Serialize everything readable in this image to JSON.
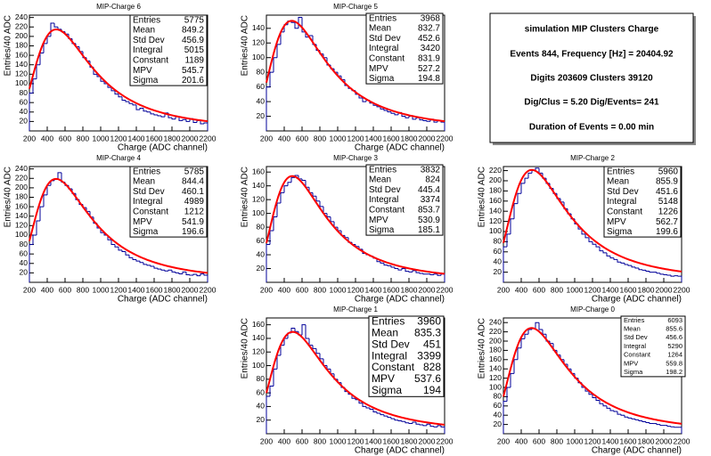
{
  "chart_data": [
    {
      "type": "histogram",
      "title": "MIP-Charge 6",
      "x_label": "Charge (ADC channel)",
      "y_label": "Entries/40 ADC",
      "bins": [
        200,
        240,
        280,
        320,
        360,
        400,
        440,
        480,
        520,
        560,
        600,
        640,
        680,
        720,
        760,
        800,
        840,
        880,
        920,
        960,
        1000,
        1040,
        1080,
        1120,
        1160,
        1200,
        1240,
        1280,
        1320,
        1360,
        1400,
        1440,
        1480,
        1520,
        1560,
        1600,
        1640,
        1680,
        1720,
        1760,
        1800,
        1840,
        1880,
        1920,
        1960,
        2000,
        2040,
        2080,
        2120,
        2160,
        2200
      ],
      "counts": [
        80,
        110,
        140,
        165,
        185,
        200,
        228,
        220,
        215,
        210,
        205,
        195,
        185,
        178,
        168,
        155,
        148,
        135,
        120,
        115,
        105,
        100,
        92,
        85,
        78,
        72,
        65,
        62,
        58,
        55,
        45,
        48,
        42,
        40,
        36,
        34,
        32,
        30,
        38,
        28,
        25,
        30,
        22,
        24,
        20,
        26,
        18,
        22,
        15,
        17
      ],
      "color": "#000099",
      "fit_color": "#ff0000",
      "xlim": [
        200,
        2200
      ],
      "xticks": [
        200,
        400,
        600,
        800,
        1000,
        1200,
        1400,
        1600,
        1800,
        2000,
        2200
      ],
      "ylim": [
        0,
        245
      ],
      "yticks": [
        20,
        40,
        60,
        80,
        100,
        120,
        140,
        160,
        180,
        200,
        220,
        240
      ],
      "stats": [
        {
          "label": "Entries",
          "value": 5775
        },
        {
          "label": "Mean",
          "value": 849.2
        },
        {
          "label": "Std Dev",
          "value": 456.9
        },
        {
          "label": "Integral",
          "value": 5015
        },
        {
          "label": "Constant",
          "value": 1189
        },
        {
          "label": "MPV",
          "value": 545.7
        },
        {
          "label": "Sigma",
          "value": 201.6
        }
      ]
    },
    {
      "type": "histogram",
      "title": "MIP-Charge 5",
      "x_label": "Charge (ADC channel)",
      "y_label": "Entries/40 ADC",
      "bins": [
        200,
        240,
        280,
        320,
        360,
        400,
        440,
        480,
        520,
        560,
        600,
        640,
        680,
        720,
        760,
        800,
        840,
        880,
        920,
        960,
        1000,
        1040,
        1080,
        1120,
        1160,
        1200,
        1240,
        1280,
        1320,
        1360,
        1400,
        1440,
        1480,
        1520,
        1560,
        1600,
        1640,
        1680,
        1720,
        1760,
        1800,
        1840,
        1880,
        1920,
        1960,
        2000,
        2040,
        2080,
        2120,
        2160,
        2200
      ],
      "counts": [
        60,
        80,
        100,
        118,
        135,
        145,
        150,
        148,
        140,
        155,
        135,
        128,
        130,
        118,
        110,
        105,
        100,
        90,
        85,
        80,
        75,
        70,
        62,
        58,
        55,
        50,
        45,
        40,
        42,
        38,
        35,
        33,
        30,
        28,
        26,
        24,
        22,
        25,
        20,
        18,
        20,
        16,
        18,
        15,
        14,
        13,
        16,
        12,
        14,
        12
      ],
      "color": "#000099",
      "fit_color": "#ff0000",
      "xlim": [
        200,
        2200
      ],
      "xticks": [
        200,
        400,
        600,
        800,
        1000,
        1200,
        1400,
        1600,
        1800,
        2000,
        2200
      ],
      "ylim": [
        0,
        158
      ],
      "yticks": [
        20,
        40,
        60,
        80,
        100,
        120,
        140
      ],
      "stats": [
        {
          "label": "Entries",
          "value": 3968
        },
        {
          "label": "Mean",
          "value": 832.7
        },
        {
          "label": "Std Dev",
          "value": 452.6
        },
        {
          "label": "Integral",
          "value": 3420
        },
        {
          "label": "Constant",
          "value": 831.9
        },
        {
          "label": "MPV",
          "value": 527.2
        },
        {
          "label": "Sigma",
          "value": 194.8
        }
      ]
    },
    {
      "type": "histogram",
      "title": "MIP-Charge 4",
      "x_label": "Charge (ADC channel)",
      "y_label": "Entries/40 ADC",
      "bins": [
        200,
        240,
        280,
        320,
        360,
        400,
        440,
        480,
        520,
        560,
        600,
        640,
        680,
        720,
        760,
        800,
        840,
        880,
        920,
        960,
        1000,
        1040,
        1080,
        1120,
        1160,
        1200,
        1240,
        1280,
        1320,
        1360,
        1400,
        1440,
        1480,
        1520,
        1560,
        1600,
        1640,
        1680,
        1720,
        1760,
        1800,
        1840,
        1880,
        1920,
        1960,
        2000,
        2040,
        2080,
        2120,
        2160,
        2200
      ],
      "counts": [
        80,
        100,
        130,
        160,
        185,
        205,
        215,
        218,
        232,
        212,
        205,
        198,
        188,
        175,
        165,
        158,
        150,
        138,
        125,
        115,
        105,
        100,
        90,
        80,
        75,
        68,
        65,
        58,
        52,
        48,
        45,
        42,
        38,
        36,
        34,
        30,
        28,
        26,
        24,
        26,
        22,
        20,
        18,
        22,
        16,
        15,
        17,
        14,
        18,
        15
      ],
      "color": "#000099",
      "fit_color": "#ff0000",
      "xlim": [
        200,
        2200
      ],
      "xticks": [
        200,
        400,
        600,
        800,
        1000,
        1200,
        1400,
        1600,
        1800,
        2000,
        2200
      ],
      "ylim": [
        0,
        245
      ],
      "yticks": [
        20,
        40,
        60,
        80,
        100,
        120,
        140,
        160,
        180,
        200,
        220,
        240
      ],
      "stats": [
        {
          "label": "Entries",
          "value": 5785
        },
        {
          "label": "Mean",
          "value": 844.4
        },
        {
          "label": "Std Dev",
          "value": 460.1
        },
        {
          "label": "Integral",
          "value": 4989
        },
        {
          "label": "Constant",
          "value": 1212
        },
        {
          "label": "MPV",
          "value": 541.9
        },
        {
          "label": "Sigma",
          "value": 196.6
        }
      ]
    },
    {
      "type": "histogram",
      "title": "MIP-Charge 3",
      "x_label": "Charge (ADC channel)",
      "y_label": "Entries/40 ADC",
      "bins": [
        200,
        240,
        280,
        320,
        360,
        400,
        440,
        480,
        520,
        560,
        600,
        640,
        680,
        720,
        760,
        800,
        840,
        880,
        920,
        960,
        1000,
        1040,
        1080,
        1120,
        1160,
        1200,
        1240,
        1280,
        1320,
        1360,
        1400,
        1440,
        1480,
        1520,
        1560,
        1600,
        1640,
        1680,
        1720,
        1760,
        1800,
        1840,
        1880,
        1920,
        1960,
        2000,
        2040,
        2080,
        2120,
        2160,
        2200
      ],
      "counts": [
        55,
        75,
        95,
        115,
        130,
        140,
        145,
        152,
        155,
        150,
        148,
        138,
        130,
        125,
        118,
        110,
        100,
        95,
        88,
        80,
        75,
        68,
        65,
        58,
        55,
        52,
        48,
        42,
        40,
        38,
        35,
        30,
        28,
        25,
        24,
        22,
        20,
        18,
        20,
        16,
        15,
        17,
        14,
        13,
        12,
        12,
        11,
        12,
        10,
        12
      ],
      "color": "#000099",
      "fit_color": "#ff0000",
      "xlim": [
        200,
        2200
      ],
      "xticks": [
        200,
        400,
        600,
        800,
        1000,
        1200,
        1400,
        1600,
        1800,
        2000,
        2200
      ],
      "ylim": [
        0,
        168
      ],
      "yticks": [
        20,
        40,
        60,
        80,
        100,
        120,
        140,
        160
      ],
      "stats": [
        {
          "label": "Entries",
          "value": 3832
        },
        {
          "label": "Mean",
          "value": 824
        },
        {
          "label": "Std Dev",
          "value": 445.4
        },
        {
          "label": "Integral",
          "value": 3374
        },
        {
          "label": "Constant",
          "value": 853.7
        },
        {
          "label": "MPV",
          "value": 530.9
        },
        {
          "label": "Sigma",
          "value": 185.1
        }
      ]
    },
    {
      "type": "histogram",
      "title": "MIP-Charge 2",
      "x_label": "Charge (ADC channel)",
      "y_label": "Entries/40 ADC",
      "bins": [
        200,
        240,
        280,
        320,
        360,
        400,
        440,
        480,
        520,
        560,
        600,
        640,
        680,
        720,
        760,
        800,
        840,
        880,
        920,
        960,
        1000,
        1040,
        1080,
        1120,
        1160,
        1200,
        1240,
        1280,
        1320,
        1360,
        1400,
        1440,
        1480,
        1520,
        1560,
        1600,
        1640,
        1680,
        1720,
        1760,
        1800,
        1840,
        1880,
        1920,
        1960,
        2000,
        2040,
        2080,
        2120,
        2160,
        2200
      ],
      "counts": [
        70,
        95,
        125,
        155,
        175,
        195,
        205,
        215,
        220,
        225,
        215,
        205,
        195,
        185,
        175,
        165,
        158,
        145,
        135,
        125,
        115,
        105,
        95,
        88,
        80,
        75,
        70,
        62,
        58,
        52,
        48,
        45,
        40,
        38,
        35,
        33,
        30,
        28,
        25,
        24,
        22,
        20,
        20,
        18,
        16,
        15,
        14,
        12,
        13,
        12
      ],
      "color": "#000099",
      "fit_color": "#ff0000",
      "xlim": [
        200,
        2200
      ],
      "xticks": [
        200,
        400,
        600,
        800,
        1000,
        1200,
        1400,
        1600,
        1800,
        2000,
        2200
      ],
      "ylim": [
        0,
        228
      ],
      "yticks": [
        20,
        40,
        60,
        80,
        100,
        120,
        140,
        160,
        180,
        200,
        220
      ],
      "stats": [
        {
          "label": "Entries",
          "value": 5960
        },
        {
          "label": "Mean",
          "value": 855.9
        },
        {
          "label": "Std Dev",
          "value": 451.6
        },
        {
          "label": "Integral",
          "value": 5148
        },
        {
          "label": "Constant",
          "value": 1226
        },
        {
          "label": "MPV",
          "value": 562.7
        },
        {
          "label": "Sigma",
          "value": 199.6
        }
      ]
    },
    {
      "type": "histogram",
      "title": "MIP-Charge 1",
      "x_label": "Charge (ADC channel)",
      "y_label": "Entries/40 ADC",
      "bins": [
        200,
        240,
        280,
        320,
        360,
        400,
        440,
        480,
        520,
        560,
        600,
        640,
        680,
        720,
        760,
        800,
        840,
        880,
        920,
        960,
        1000,
        1040,
        1080,
        1120,
        1160,
        1200,
        1240,
        1280,
        1320,
        1360,
        1400,
        1440,
        1480,
        1520,
        1560,
        1600,
        1640,
        1680,
        1720,
        1760,
        1800,
        1840,
        1880,
        1920,
        1960,
        2000,
        2040,
        2080,
        2120,
        2160,
        2200
      ],
      "counts": [
        55,
        70,
        95,
        115,
        130,
        140,
        148,
        155,
        150,
        145,
        160,
        140,
        130,
        125,
        118,
        110,
        100,
        95,
        88,
        80,
        75,
        68,
        62,
        58,
        52,
        50,
        45,
        40,
        38,
        36,
        32,
        30,
        28,
        26,
        24,
        22,
        20,
        19,
        18,
        16,
        15,
        17,
        14,
        13,
        12,
        14,
        11,
        10,
        12,
        10
      ],
      "color": "#000099",
      "fit_color": "#ff0000",
      "xlim": [
        200,
        2200
      ],
      "xticks": [
        200,
        400,
        600,
        800,
        1000,
        1200,
        1400,
        1600,
        1800,
        2000,
        2200
      ],
      "ylim": [
        0,
        170
      ],
      "yticks": [
        20,
        40,
        60,
        80,
        100,
        120,
        140,
        160
      ],
      "stats": [
        {
          "label": "Entries",
          "value": 3960
        },
        {
          "label": "Mean",
          "value": 835.3
        },
        {
          "label": "Std Dev",
          "value": 451
        },
        {
          "label": "Integral",
          "value": 3399
        },
        {
          "label": "Constant",
          "value": 828
        },
        {
          "label": "MPV",
          "value": 537.6
        },
        {
          "label": "Sigma",
          "value": 194
        }
      ]
    },
    {
      "type": "histogram",
      "title": "MIP-Charge 0",
      "x_label": "Charge (ADC channel)",
      "y_label": "Entries/40 ADC",
      "bins": [
        200,
        240,
        280,
        320,
        360,
        400,
        440,
        480,
        520,
        560,
        600,
        640,
        680,
        720,
        760,
        800,
        840,
        880,
        920,
        960,
        1000,
        1040,
        1080,
        1120,
        1160,
        1200,
        1240,
        1280,
        1320,
        1360,
        1400,
        1440,
        1480,
        1520,
        1560,
        1600,
        1640,
        1680,
        1720,
        1760,
        1800,
        1840,
        1880,
        1920,
        1960,
        2000,
        2040,
        2080,
        2120,
        2160,
        2200
      ],
      "counts": [
        70,
        100,
        130,
        160,
        185,
        205,
        215,
        225,
        228,
        240,
        225,
        215,
        200,
        195,
        180,
        170,
        160,
        150,
        140,
        130,
        120,
        110,
        100,
        92,
        85,
        78,
        72,
        65,
        60,
        55,
        50,
        48,
        42,
        40,
        36,
        34,
        32,
        30,
        28,
        26,
        24,
        22,
        22,
        20,
        18,
        18,
        16,
        15,
        14,
        14
      ],
      "color": "#000099",
      "fit_color": "#ff0000",
      "xlim": [
        200,
        2200
      ],
      "xticks": [
        200,
        400,
        600,
        800,
        1000,
        1200,
        1400,
        1600,
        1800,
        2000,
        2200
      ],
      "ylim": [
        0,
        250
      ],
      "yticks": [
        20,
        40,
        60,
        80,
        100,
        120,
        140,
        160,
        180,
        200,
        220,
        240
      ],
      "stats": [
        {
          "label": "Entries",
          "value": 6093
        },
        {
          "label": "Mean",
          "value": 855.6
        },
        {
          "label": "Std Dev",
          "value": 456.6
        },
        {
          "label": "Integral",
          "value": 5290
        },
        {
          "label": "Constant",
          "value": 1264
        },
        {
          "label": "MPV",
          "value": 559.8
        },
        {
          "label": "Sigma",
          "value": 198.2
        }
      ]
    }
  ],
  "summary_panel": {
    "lines": [
      "simulation MIP Clusters Charge",
      "Events 844, Frequency [Hz] = 20404.92",
      "Digits 203609 Clusters 39120",
      "Dig/Clus = 5.20 Dig/Events= 241",
      "Duration of Events = 0.00 min"
    ]
  }
}
